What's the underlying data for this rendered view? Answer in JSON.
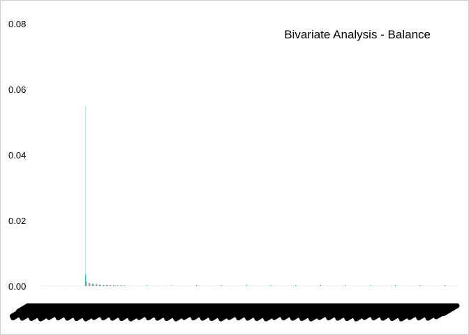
{
  "chart_data": {
    "type": "bar",
    "title": "Bivariate Analysis - Balance",
    "xlabel": "",
    "ylabel": "",
    "ylim": [
      0,
      0.08
    ],
    "y_ticks": [
      "0.00",
      "0.02",
      "0.04",
      "0.06",
      "0.08"
    ],
    "grid": false,
    "legend": "none",
    "x_tick_labels": "overlapping, illegible",
    "spike_index": 0,
    "spike_values": {
      "teal_thin": 0.055,
      "teal": 0.0035,
      "red": 0.0015
    },
    "series": [
      {
        "color": "#e7766f",
        "values": [
          0.0015,
          0.0009,
          0.0007,
          0.0006,
          0.0005,
          0.0004,
          0.0004,
          0.0003,
          0.0003,
          0.0003,
          0.0002,
          0.0002
        ]
      },
      {
        "color": "#1ebfc2",
        "values": [
          0.0035,
          0.001,
          0.0008,
          0.0006,
          0.0005,
          0.0004,
          0.0004,
          0.0003,
          0.0003,
          0.0002,
          0.0002,
          0.0002
        ]
      }
    ],
    "scattered_teal_values": [
      0.0004,
      0.0003,
      0.0004,
      0.0003,
      0.0005,
      0.0003,
      0.0004,
      0.0005,
      0.0004,
      0.0003,
      0.0004,
      0.0003,
      0.0004
    ]
  }
}
